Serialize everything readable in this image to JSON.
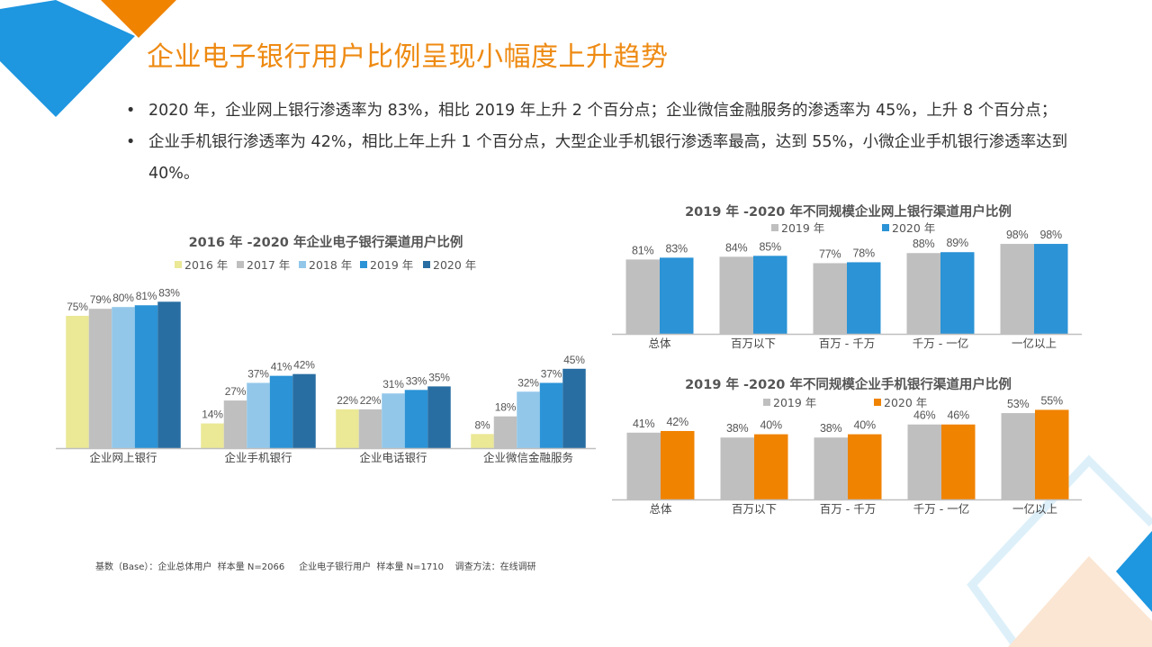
{
  "slide": {
    "title": "企业电子银行用户比例呈现小幅度上升趋势",
    "bullets": [
      "2020 年，企业网上银行渗透率为 83%，相比 2019 年上升 2 个百分点；企业微信金融服务的渗透率为 45%，上升 8 个百分点；",
      "企业手机银行渗透率为 42%，相比上年上升 1 个百分点，大型企业手机银行渗透率最高，达到 55%，小微企业手机银行渗透率达到 40%。"
    ],
    "footer": "基数（Base）：企业总体用户  样本量 N=2066     企业电子银行用户  样本量 N=1710    调查方法：在线调研",
    "colors": {
      "title": "#EE8A12",
      "accent_blue": "#1E96E0",
      "accent_orange": "#F08300"
    }
  },
  "chart_data": [
    {
      "type": "bar",
      "title": "2016 年 -2020 年企业电子银行渠道用户比例",
      "categories": [
        "企业网上银行",
        "企业手机银行",
        "企业电话银行",
        "企业微信金融服务"
      ],
      "series": [
        {
          "name": "2016 年",
          "color": "#EBE896",
          "values": [
            75,
            14,
            22,
            8
          ]
        },
        {
          "name": "2017 年",
          "color": "#BFBFBF",
          "values": [
            79,
            27,
            22,
            18
          ]
        },
        {
          "name": "2018 年",
          "color": "#93C7EA",
          "values": [
            80,
            37,
            31,
            32
          ]
        },
        {
          "name": "2019 年",
          "color": "#2B93D6",
          "values": [
            81,
            41,
            33,
            37
          ]
        },
        {
          "name": "2020 年",
          "color": "#286EA2",
          "values": [
            83,
            42,
            35,
            45
          ]
        }
      ],
      "value_suffix": "%",
      "legend": "top",
      "grid": false
    },
    {
      "type": "bar",
      "title": "2019 年 -2020 年不同规模企业网上银行渠道用户比例",
      "categories": [
        "总体",
        "百万以下",
        "百万 - 千万",
        "千万 - 一亿",
        "一亿以上"
      ],
      "series": [
        {
          "name": "2019 年",
          "color": "#BFBFBF",
          "values": [
            81,
            84,
            77,
            88,
            98
          ]
        },
        {
          "name": "2020 年",
          "color": "#2B93D6",
          "values": [
            83,
            85,
            78,
            89,
            98
          ]
        }
      ],
      "value_suffix": "%",
      "legend": "top",
      "grid": false
    },
    {
      "type": "bar",
      "title": "2019 年 -2020 年不同规模企业手机银行渠道用户比例",
      "categories": [
        "总体",
        "百万以下",
        "百万 - 千万",
        "千万 - 一亿",
        "一亿以上"
      ],
      "series": [
        {
          "name": "2019 年",
          "color": "#BFBFBF",
          "values": [
            41,
            38,
            38,
            46,
            53
          ]
        },
        {
          "name": "2020 年",
          "color": "#F08300",
          "values": [
            42,
            40,
            40,
            46,
            55
          ]
        }
      ],
      "value_suffix": "%",
      "legend": "top",
      "grid": false
    }
  ]
}
